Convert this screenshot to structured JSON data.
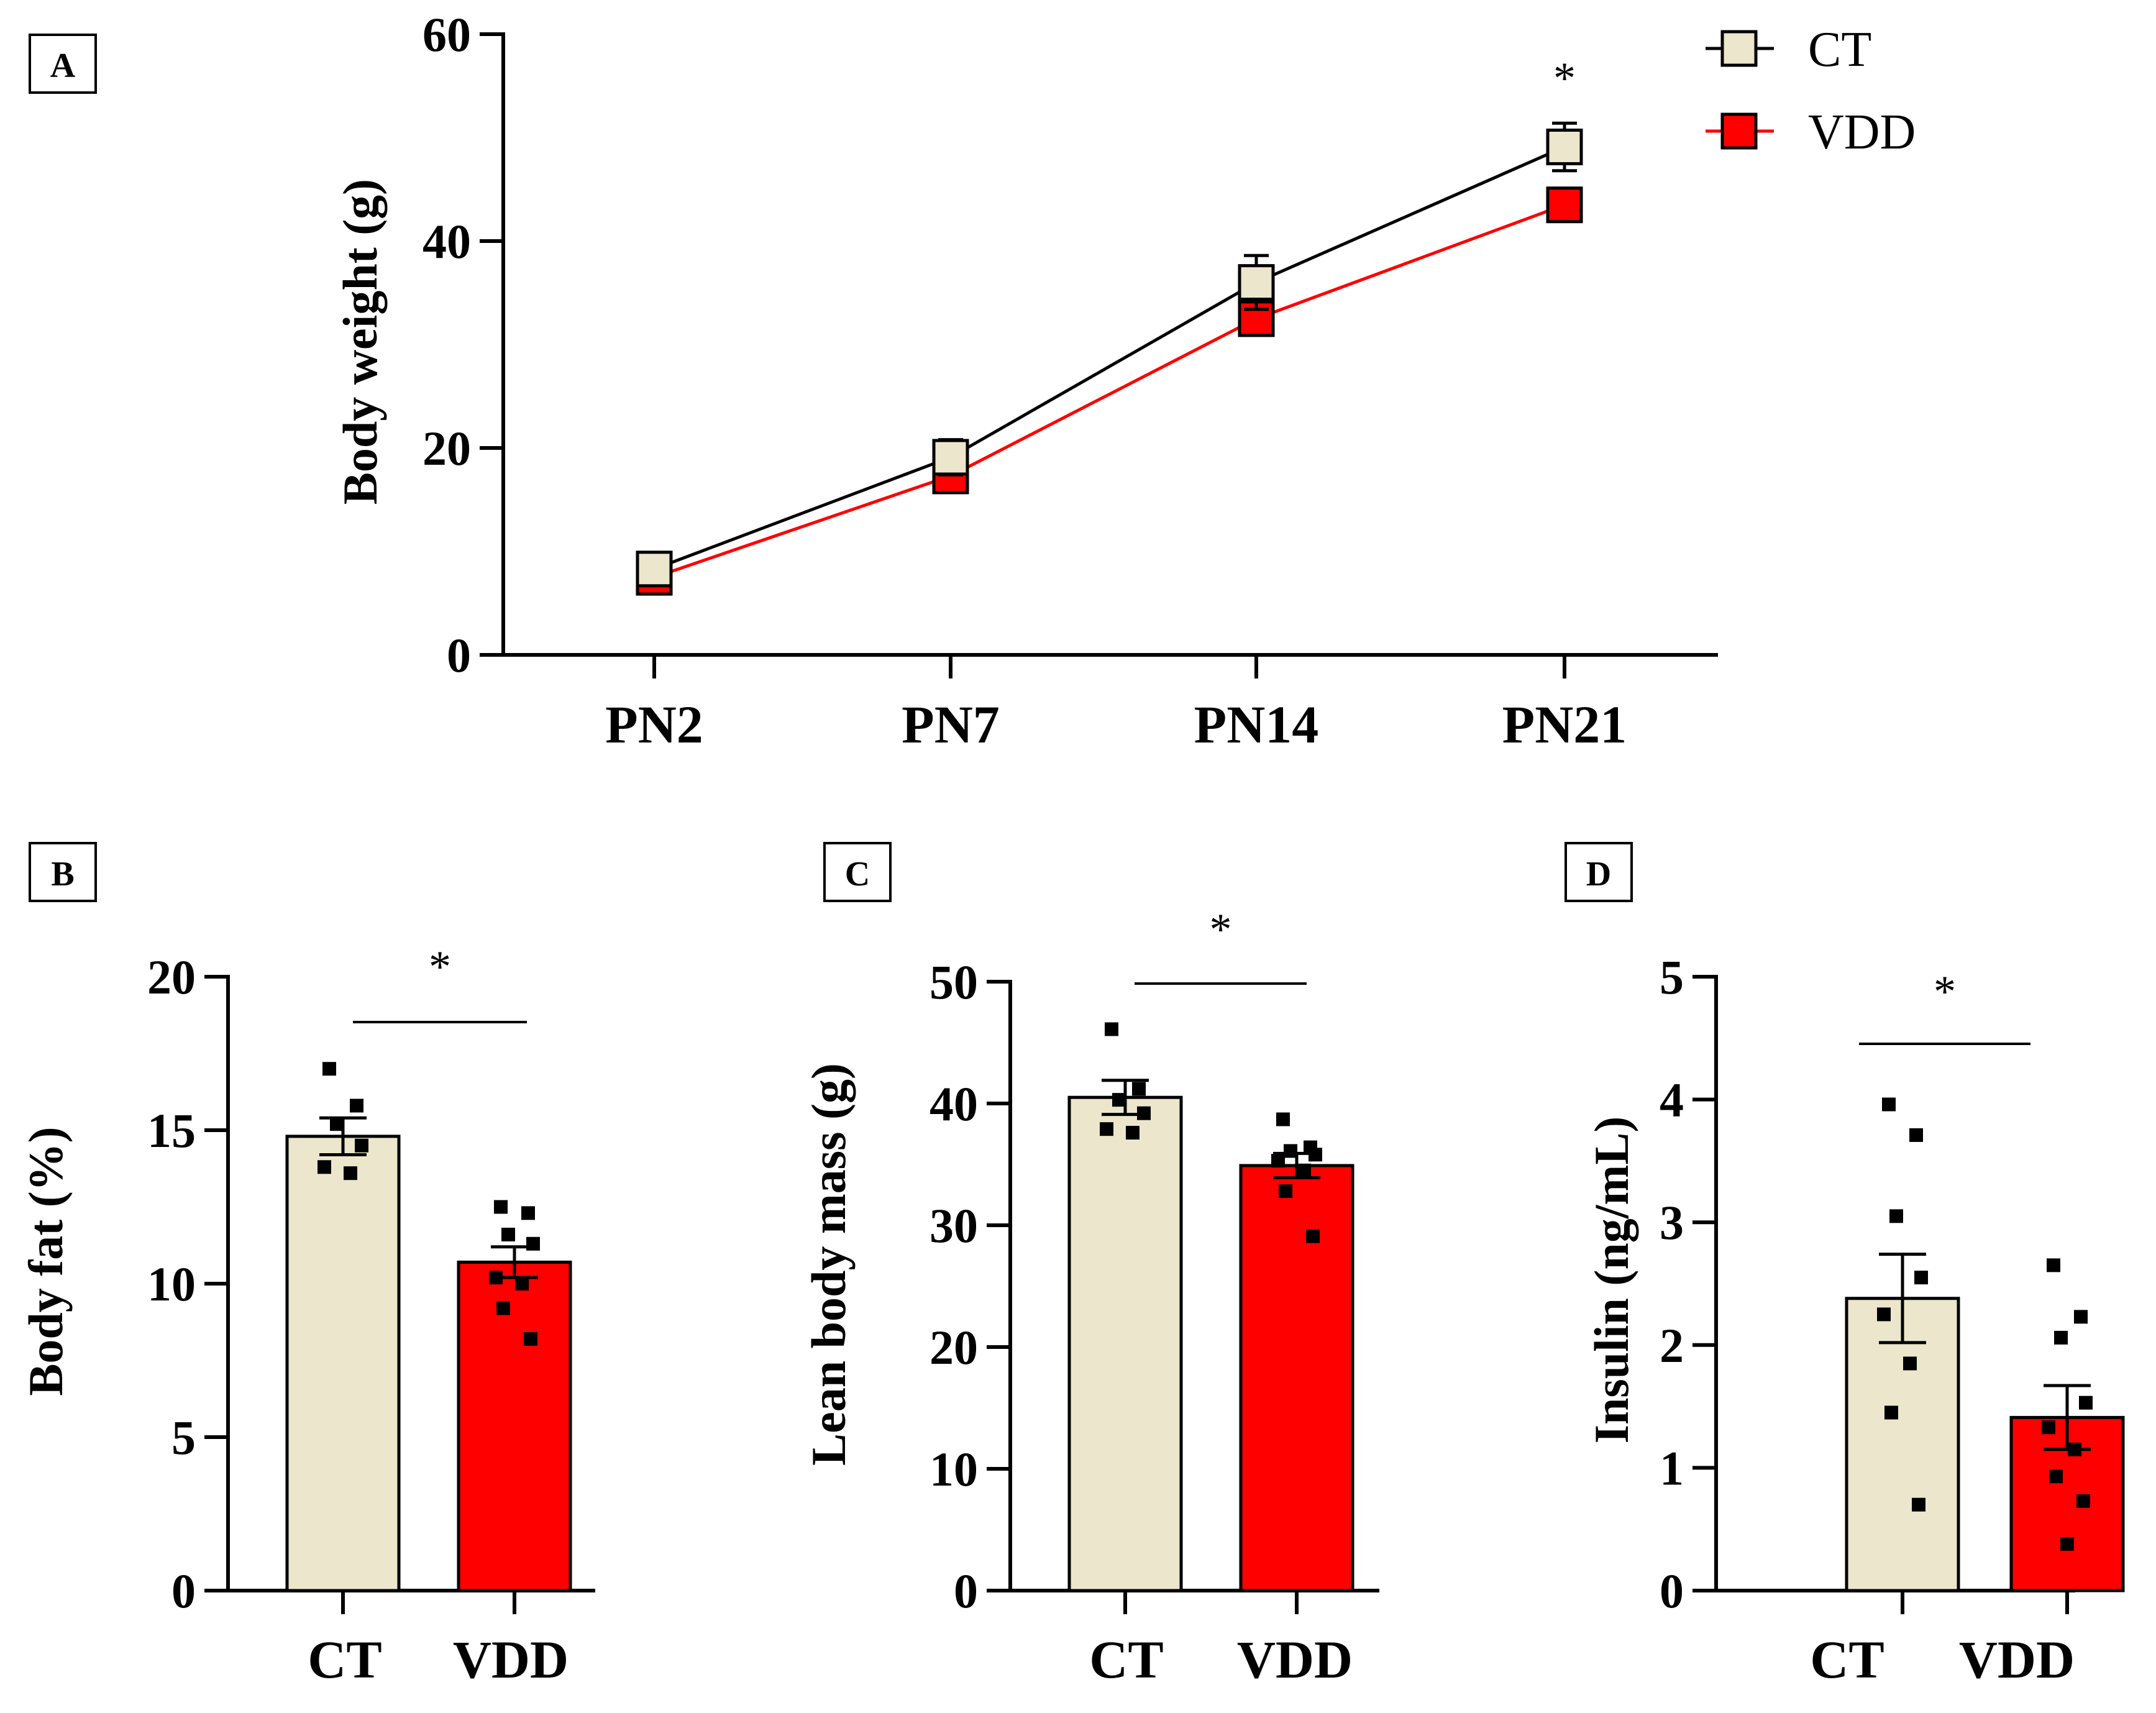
{
  "colors": {
    "ct": "#ECE6CC",
    "vdd": "#FF0000",
    "axis": "#000000"
  },
  "legend": {
    "ct_label": "CT",
    "vdd_label": "VDD"
  },
  "chart_data": [
    {
      "panel": "A",
      "type": "line",
      "ylabel": "Body weight  (g)",
      "categories": [
        "PN2",
        "PN7",
        "PN14",
        "PN21"
      ],
      "ylim": [
        0,
        60
      ],
      "yticks": [
        0,
        20,
        40,
        60
      ],
      "series": [
        {
          "name": "CT",
          "values": [
            8.3,
            19.1,
            36.0,
            49.1
          ],
          "errors": [
            0.5,
            1.7,
            2.6,
            2.3
          ]
        },
        {
          "name": "VDD",
          "values": [
            7.5,
            17.3,
            32.5,
            43.5
          ],
          "errors": [
            0.4,
            0.8,
            1.0,
            1.6
          ]
        }
      ],
      "annotations": [
        {
          "category": "PN21",
          "text": "*"
        }
      ]
    },
    {
      "panel": "B",
      "type": "bar",
      "ylabel": "Body fat (%)",
      "categories": [
        "CT",
        "VDD"
      ],
      "ylim": [
        0,
        20
      ],
      "yticks": [
        0,
        5,
        10,
        15,
        20
      ],
      "values": [
        14.8,
        10.7
      ],
      "errors": [
        0.6,
        0.5
      ],
      "points": [
        [
          17.0,
          15.8,
          15.2,
          14.5,
          13.8,
          13.6
        ],
        [
          12.5,
          12.3,
          11.6,
          11.3,
          10.2,
          10.0,
          9.2,
          8.2
        ]
      ],
      "significance": "*"
    },
    {
      "panel": "C",
      "type": "bar",
      "ylabel": "Lean body mass (g)",
      "categories": [
        "CT",
        "VDD"
      ],
      "ylim": [
        0,
        50
      ],
      "yticks": [
        0,
        10,
        20,
        30,
        40,
        50
      ],
      "values": [
        40.5,
        34.9
      ],
      "errors": [
        1.4,
        1.0
      ],
      "points": [
        [
          46.1,
          41.2,
          40.3,
          39.2,
          37.9,
          37.6
        ],
        [
          38.7,
          36.4,
          36.1,
          35.8,
          35.3,
          34.5,
          32.8,
          29.1
        ]
      ],
      "significance": "*"
    },
    {
      "panel": "D",
      "type": "bar",
      "ylabel": "Insulin (ng/mL)",
      "categories": [
        "CT",
        "VDD"
      ],
      "ylim": [
        0,
        5
      ],
      "yticks": [
        0,
        1,
        2,
        3,
        4,
        5
      ],
      "values": [
        2.38,
        1.41
      ],
      "errors": [
        0.36,
        0.26
      ],
      "points": [
        [
          3.96,
          3.71,
          3.05,
          2.55,
          2.25,
          1.85,
          1.45,
          0.7
        ],
        [
          2.65,
          2.23,
          2.06,
          1.53,
          1.33,
          1.15,
          0.93,
          0.73,
          0.38
        ]
      ],
      "significance": "*"
    }
  ]
}
